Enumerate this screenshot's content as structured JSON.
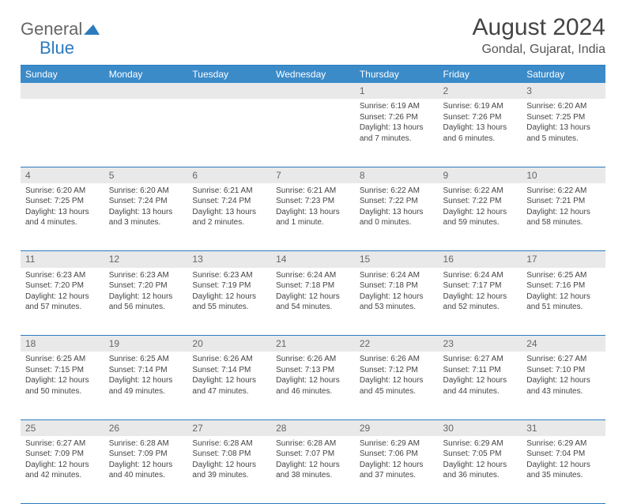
{
  "logo": {
    "text1": "General",
    "text2": "Blue"
  },
  "title": "August 2024",
  "location": "Gondal, Gujarat, India",
  "dayHeaders": [
    "Sunday",
    "Monday",
    "Tuesday",
    "Wednesday",
    "Thursday",
    "Friday",
    "Saturday"
  ],
  "colors": {
    "headerBg": "#3b8bc9",
    "headerText": "#ffffff",
    "dayNumBg": "#e9e9e9",
    "borderColor": "#2b7bbf",
    "textColor": "#444444",
    "logoBlue": "#2b7bbf"
  },
  "weeks": [
    [
      null,
      null,
      null,
      null,
      {
        "num": "1",
        "sunrise": "Sunrise: 6:19 AM",
        "sunset": "Sunset: 7:26 PM",
        "daylight": "Daylight: 13 hours and 7 minutes."
      },
      {
        "num": "2",
        "sunrise": "Sunrise: 6:19 AM",
        "sunset": "Sunset: 7:26 PM",
        "daylight": "Daylight: 13 hours and 6 minutes."
      },
      {
        "num": "3",
        "sunrise": "Sunrise: 6:20 AM",
        "sunset": "Sunset: 7:25 PM",
        "daylight": "Daylight: 13 hours and 5 minutes."
      }
    ],
    [
      {
        "num": "4",
        "sunrise": "Sunrise: 6:20 AM",
        "sunset": "Sunset: 7:25 PM",
        "daylight": "Daylight: 13 hours and 4 minutes."
      },
      {
        "num": "5",
        "sunrise": "Sunrise: 6:20 AM",
        "sunset": "Sunset: 7:24 PM",
        "daylight": "Daylight: 13 hours and 3 minutes."
      },
      {
        "num": "6",
        "sunrise": "Sunrise: 6:21 AM",
        "sunset": "Sunset: 7:24 PM",
        "daylight": "Daylight: 13 hours and 2 minutes."
      },
      {
        "num": "7",
        "sunrise": "Sunrise: 6:21 AM",
        "sunset": "Sunset: 7:23 PM",
        "daylight": "Daylight: 13 hours and 1 minute."
      },
      {
        "num": "8",
        "sunrise": "Sunrise: 6:22 AM",
        "sunset": "Sunset: 7:22 PM",
        "daylight": "Daylight: 13 hours and 0 minutes."
      },
      {
        "num": "9",
        "sunrise": "Sunrise: 6:22 AM",
        "sunset": "Sunset: 7:22 PM",
        "daylight": "Daylight: 12 hours and 59 minutes."
      },
      {
        "num": "10",
        "sunrise": "Sunrise: 6:22 AM",
        "sunset": "Sunset: 7:21 PM",
        "daylight": "Daylight: 12 hours and 58 minutes."
      }
    ],
    [
      {
        "num": "11",
        "sunrise": "Sunrise: 6:23 AM",
        "sunset": "Sunset: 7:20 PM",
        "daylight": "Daylight: 12 hours and 57 minutes."
      },
      {
        "num": "12",
        "sunrise": "Sunrise: 6:23 AM",
        "sunset": "Sunset: 7:20 PM",
        "daylight": "Daylight: 12 hours and 56 minutes."
      },
      {
        "num": "13",
        "sunrise": "Sunrise: 6:23 AM",
        "sunset": "Sunset: 7:19 PM",
        "daylight": "Daylight: 12 hours and 55 minutes."
      },
      {
        "num": "14",
        "sunrise": "Sunrise: 6:24 AM",
        "sunset": "Sunset: 7:18 PM",
        "daylight": "Daylight: 12 hours and 54 minutes."
      },
      {
        "num": "15",
        "sunrise": "Sunrise: 6:24 AM",
        "sunset": "Sunset: 7:18 PM",
        "daylight": "Daylight: 12 hours and 53 minutes."
      },
      {
        "num": "16",
        "sunrise": "Sunrise: 6:24 AM",
        "sunset": "Sunset: 7:17 PM",
        "daylight": "Daylight: 12 hours and 52 minutes."
      },
      {
        "num": "17",
        "sunrise": "Sunrise: 6:25 AM",
        "sunset": "Sunset: 7:16 PM",
        "daylight": "Daylight: 12 hours and 51 minutes."
      }
    ],
    [
      {
        "num": "18",
        "sunrise": "Sunrise: 6:25 AM",
        "sunset": "Sunset: 7:15 PM",
        "daylight": "Daylight: 12 hours and 50 minutes."
      },
      {
        "num": "19",
        "sunrise": "Sunrise: 6:25 AM",
        "sunset": "Sunset: 7:14 PM",
        "daylight": "Daylight: 12 hours and 49 minutes."
      },
      {
        "num": "20",
        "sunrise": "Sunrise: 6:26 AM",
        "sunset": "Sunset: 7:14 PM",
        "daylight": "Daylight: 12 hours and 47 minutes."
      },
      {
        "num": "21",
        "sunrise": "Sunrise: 6:26 AM",
        "sunset": "Sunset: 7:13 PM",
        "daylight": "Daylight: 12 hours and 46 minutes."
      },
      {
        "num": "22",
        "sunrise": "Sunrise: 6:26 AM",
        "sunset": "Sunset: 7:12 PM",
        "daylight": "Daylight: 12 hours and 45 minutes."
      },
      {
        "num": "23",
        "sunrise": "Sunrise: 6:27 AM",
        "sunset": "Sunset: 7:11 PM",
        "daylight": "Daylight: 12 hours and 44 minutes."
      },
      {
        "num": "24",
        "sunrise": "Sunrise: 6:27 AM",
        "sunset": "Sunset: 7:10 PM",
        "daylight": "Daylight: 12 hours and 43 minutes."
      }
    ],
    [
      {
        "num": "25",
        "sunrise": "Sunrise: 6:27 AM",
        "sunset": "Sunset: 7:09 PM",
        "daylight": "Daylight: 12 hours and 42 minutes."
      },
      {
        "num": "26",
        "sunrise": "Sunrise: 6:28 AM",
        "sunset": "Sunset: 7:09 PM",
        "daylight": "Daylight: 12 hours and 40 minutes."
      },
      {
        "num": "27",
        "sunrise": "Sunrise: 6:28 AM",
        "sunset": "Sunset: 7:08 PM",
        "daylight": "Daylight: 12 hours and 39 minutes."
      },
      {
        "num": "28",
        "sunrise": "Sunrise: 6:28 AM",
        "sunset": "Sunset: 7:07 PM",
        "daylight": "Daylight: 12 hours and 38 minutes."
      },
      {
        "num": "29",
        "sunrise": "Sunrise: 6:29 AM",
        "sunset": "Sunset: 7:06 PM",
        "daylight": "Daylight: 12 hours and 37 minutes."
      },
      {
        "num": "30",
        "sunrise": "Sunrise: 6:29 AM",
        "sunset": "Sunset: 7:05 PM",
        "daylight": "Daylight: 12 hours and 36 minutes."
      },
      {
        "num": "31",
        "sunrise": "Sunrise: 6:29 AM",
        "sunset": "Sunset: 7:04 PM",
        "daylight": "Daylight: 12 hours and 35 minutes."
      }
    ]
  ]
}
